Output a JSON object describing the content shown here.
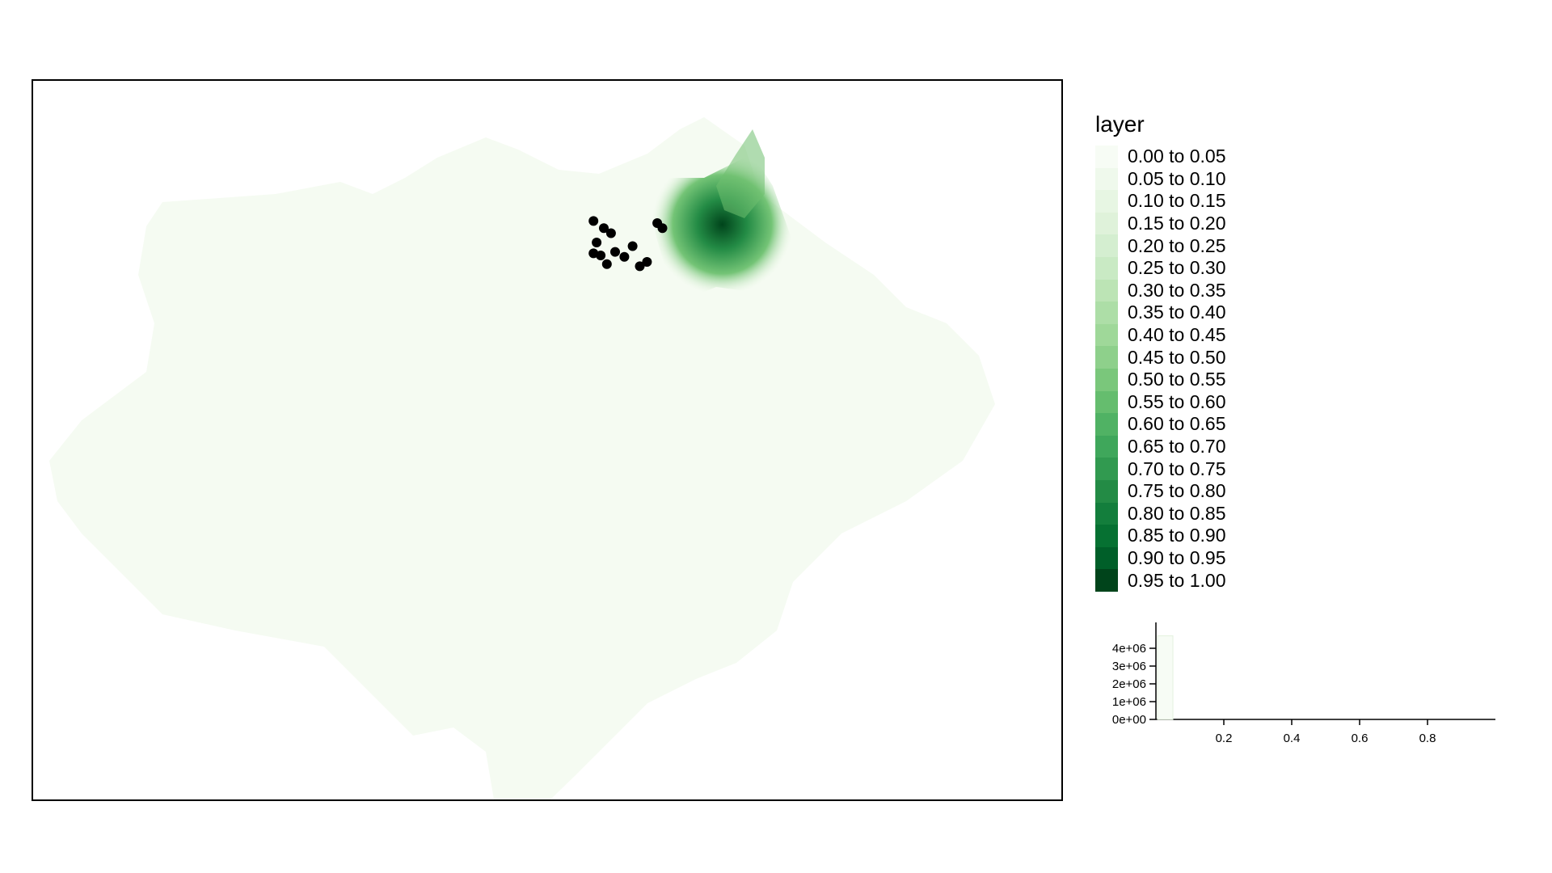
{
  "map": {
    "points": [
      {
        "lon": 0.545,
        "lat": 0.195
      },
      {
        "lon": 0.555,
        "lat": 0.205
      },
      {
        "lon": 0.562,
        "lat": 0.212
      },
      {
        "lon": 0.545,
        "lat": 0.24
      },
      {
        "lon": 0.552,
        "lat": 0.243
      },
      {
        "lon": 0.558,
        "lat": 0.255
      },
      {
        "lon": 0.566,
        "lat": 0.238
      },
      {
        "lon": 0.575,
        "lat": 0.245
      },
      {
        "lon": 0.583,
        "lat": 0.23
      },
      {
        "lon": 0.59,
        "lat": 0.258
      },
      {
        "lon": 0.597,
        "lat": 0.252
      },
      {
        "lon": 0.607,
        "lat": 0.198
      },
      {
        "lon": 0.612,
        "lat": 0.205
      },
      {
        "lon": 0.548,
        "lat": 0.225
      }
    ],
    "point_color": "#000000",
    "background_fill": "#f5fbf2"
  },
  "legend": {
    "title": "layer",
    "items": [
      {
        "label": "0.00 to 0.05",
        "color": "#f7fcf5"
      },
      {
        "label": "0.05 to 0.10",
        "color": "#eff9ec"
      },
      {
        "label": "0.10 to 0.15",
        "color": "#e7f6e3"
      },
      {
        "label": "0.15 to 0.20",
        "color": "#dff2da"
      },
      {
        "label": "0.20 to 0.25",
        "color": "#d4eed0"
      },
      {
        "label": "0.25 to 0.30",
        "color": "#c9eac4"
      },
      {
        "label": "0.30 to 0.35",
        "color": "#bce4b5"
      },
      {
        "label": "0.35 to 0.40",
        "color": "#addea7"
      },
      {
        "label": "0.40 to 0.45",
        "color": "#9fd899"
      },
      {
        "label": "0.45 to 0.50",
        "color": "#8ed08b"
      },
      {
        "label": "0.50 to 0.55",
        "color": "#7ac77b"
      },
      {
        "label": "0.55 to 0.60",
        "color": "#65bd6e"
      },
      {
        "label": "0.60 to 0.65",
        "color": "#50b264"
      },
      {
        "label": "0.65 to 0.70",
        "color": "#3fa75b"
      },
      {
        "label": "0.70 to 0.75",
        "color": "#319a50"
      },
      {
        "label": "0.75 to 0.80",
        "color": "#238b45"
      },
      {
        "label": "0.80 to 0.85",
        "color": "#137e3c"
      },
      {
        "label": "0.85 to 0.90",
        "color": "#067132"
      },
      {
        "label": "0.90 to 0.95",
        "color": "#005f29"
      },
      {
        "label": "0.95 to 1.00",
        "color": "#00441b"
      }
    ]
  },
  "histogram": {
    "y_ticks": [
      "4e+06",
      "3e+06",
      "2e+06",
      "1e+06",
      "0e+00"
    ],
    "x_ticks": [
      "0.2",
      "0.4",
      "0.6",
      "0.8"
    ],
    "bar_value": 4700000,
    "bar_color": "#f7fcf5"
  }
}
